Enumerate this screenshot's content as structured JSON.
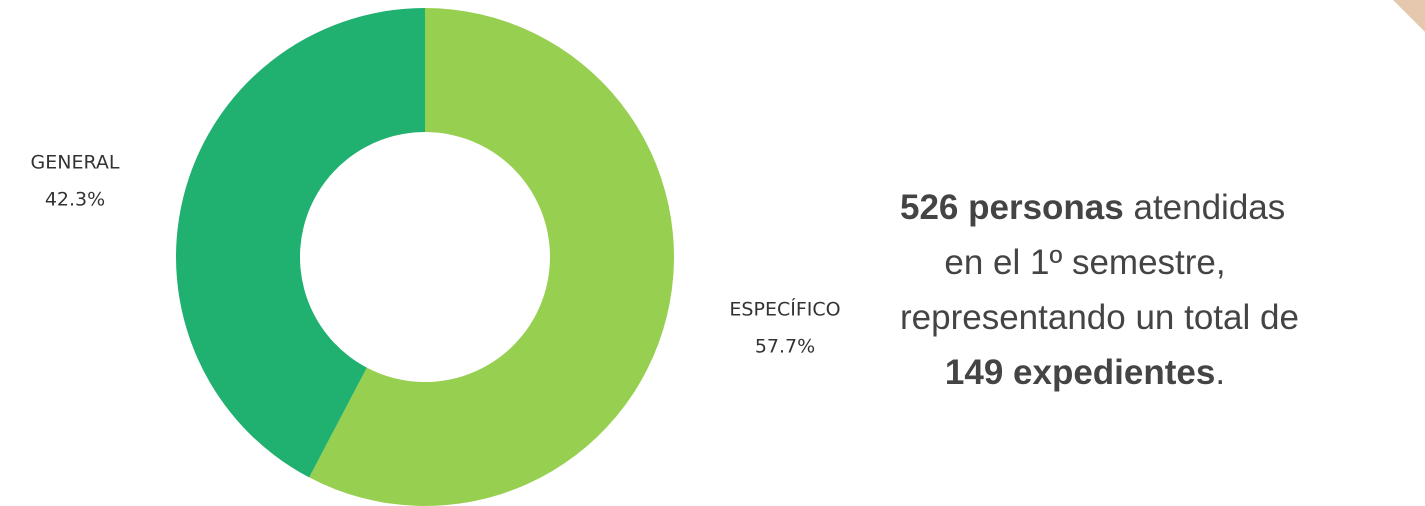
{
  "chart_data": {
    "type": "donut",
    "categories": [
      "ESPECÍFICO",
      "GENERAL"
    ],
    "values": [
      57.7,
      42.3
    ],
    "value_labels": [
      "57.7%",
      "42.3%"
    ],
    "colors": [
      "#97cf50",
      "#20b070"
    ],
    "annotation": [
      [
        {
          "text": "526 personas",
          "bold": true
        },
        {
          "text": " atendidas"
        }
      ],
      [
        {
          "text": "en el 1º semestre,"
        }
      ],
      [
        {
          "text": "representando un total de"
        }
      ],
      [
        {
          "text": "149 expedientes",
          "bold": true
        },
        {
          "text": "."
        }
      ]
    ]
  }
}
